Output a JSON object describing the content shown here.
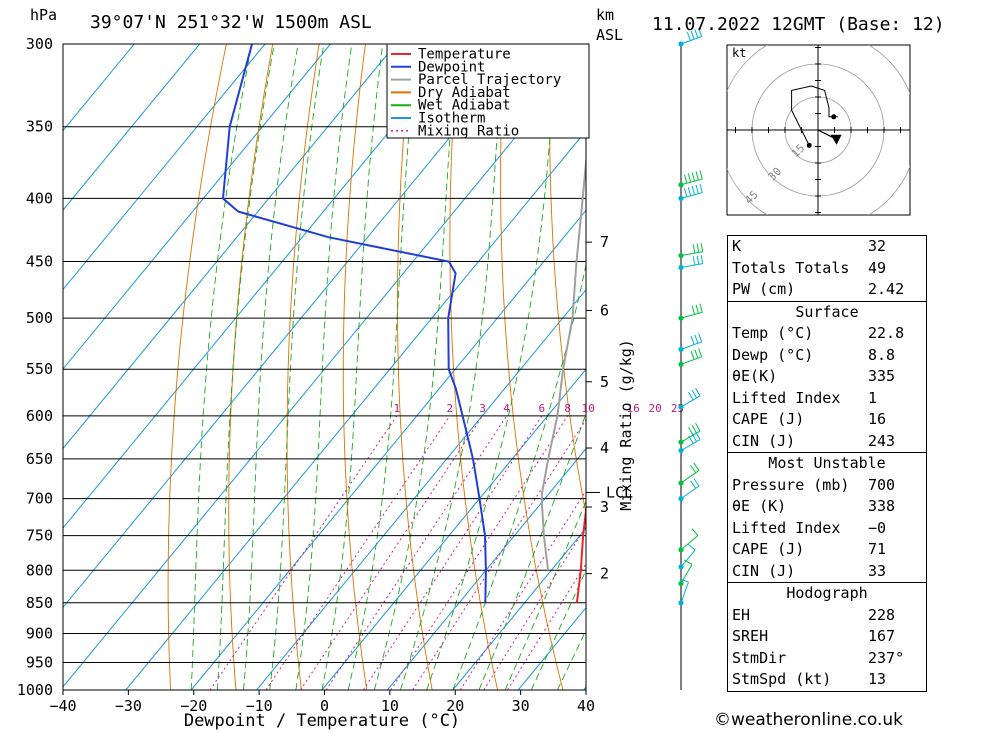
{
  "header": {
    "hpa_label": "hPa",
    "location": "39°07'N  251°32'W  1500m  ASL",
    "km_label": "km",
    "asl_label": "ASL",
    "datetime": "11.07.2022  12GMT  (Base: 12)"
  },
  "legend": [
    {
      "label": "Temperature",
      "color": "#e8262c",
      "style": "solid"
    },
    {
      "label": "Dewpoint",
      "color": "#1f3fd6",
      "style": "solid"
    },
    {
      "label": "Parcel Trajectory",
      "color": "#a0a0a0",
      "style": "solid"
    },
    {
      "label": "Dry Adiabat",
      "color": "#e07000",
      "style": "solid"
    },
    {
      "label": "Wet Adiabat",
      "color": "#1aaa1a",
      "style": "solid"
    },
    {
      "label": "Isotherm",
      "color": "#1e96dc",
      "style": "solid"
    },
    {
      "label": "Mixing Ratio",
      "color": "#d0209a",
      "style": "dotted"
    }
  ],
  "chart_data": {
    "type": "line",
    "chart_kind": "skew-T log-P",
    "xlabel": "Dewpoint / Temperature (°C)",
    "ylabel": "hPa",
    "xlim": [
      -40,
      40
    ],
    "ylim": [
      1000,
      300
    ],
    "y_scale": "log",
    "x_ticks": [
      -40,
      -30,
      -20,
      -10,
      0,
      10,
      20,
      30,
      40
    ],
    "pressure_levels": [
      300,
      350,
      400,
      450,
      500,
      550,
      600,
      650,
      700,
      750,
      800,
      850,
      900,
      950,
      1000
    ],
    "height_km_ticks": [
      {
        "label": "7",
        "pressure": 434
      },
      {
        "label": "6",
        "pressure": 493
      },
      {
        "label": "5",
        "pressure": 563
      },
      {
        "label": "4",
        "pressure": 637
      },
      {
        "label": "3",
        "pressure": 711
      },
      {
        "label": "2",
        "pressure": 805
      }
    ],
    "lcl": {
      "label": "LCL",
      "pressure": 692
    },
    "mixing_ratio_label": "Mixing Ratio (g/kg)",
    "mixing_ratio_values": [
      "1",
      "2",
      "3",
      "4",
      "6",
      "8",
      "10",
      "16",
      "20",
      "25"
    ],
    "series": [
      {
        "name": "Temperature",
        "color": "#e8262c",
        "points": [
          [
            850,
            28.0
          ],
          [
            800,
            24.5
          ],
          [
            750,
            20.5
          ],
          [
            700,
            16.5
          ],
          [
            650,
            12.0
          ],
          [
            600,
            7.0
          ],
          [
            550,
            1.5
          ],
          [
            500,
            -5.0
          ],
          [
            460,
            -10.5
          ],
          [
            450,
            -11.0
          ],
          [
            440,
            -11.5
          ],
          [
            420,
            -16.0
          ],
          [
            400,
            -20.0
          ],
          [
            370,
            -25.5
          ],
          [
            350,
            -29.0
          ],
          [
            320,
            -34.5
          ],
          [
            300,
            -38.5
          ]
        ]
      },
      {
        "name": "Dewpoint",
        "color": "#1f3fd6",
        "points": [
          [
            850,
            14.0
          ],
          [
            800,
            10.0
          ],
          [
            750,
            5.5
          ],
          [
            700,
            0.0
          ],
          [
            650,
            -6.0
          ],
          [
            600,
            -13.0
          ],
          [
            570,
            -17.5
          ],
          [
            550,
            -21.0
          ],
          [
            500,
            -27.5
          ],
          [
            460,
            -32.0
          ],
          [
            450,
            -34.5
          ],
          [
            430,
            -56.0
          ],
          [
            410,
            -73.0
          ],
          [
            400,
            -77.0
          ],
          [
            350,
            -85.0
          ],
          [
            300,
            -92.0
          ]
        ]
      },
      {
        "name": "Parcel Trajectory",
        "color": "#a0a0a0",
        "points": [
          [
            800,
            19.5
          ],
          [
            750,
            14.5
          ],
          [
            700,
            9.5
          ],
          [
            692,
            8.8
          ],
          [
            650,
            5.5
          ],
          [
            600,
            1.5
          ],
          [
            550,
            -3.5
          ],
          [
            500,
            -8.5
          ],
          [
            450,
            -15.0
          ],
          [
            400,
            -22.0
          ],
          [
            350,
            -30.0
          ],
          [
            300,
            -39.5
          ]
        ]
      }
    ]
  },
  "hodograph": {
    "unit_label": "kt",
    "ring_labels": [
      "15",
      "30",
      "45"
    ],
    "trace_kt": [
      [
        -4,
        -7
      ],
      [
        -12,
        9
      ],
      [
        -12,
        18
      ],
      [
        -3,
        20
      ],
      [
        3,
        18
      ],
      [
        5,
        10
      ],
      [
        5,
        6
      ],
      [
        9,
        6
      ]
    ],
    "storm_motion_kt": [
      [
        8,
        -4
      ],
      [
        0,
        0
      ]
    ]
  },
  "indices": [
    {
      "label": "K",
      "value": "32"
    },
    {
      "label": "Totals Totals",
      "value": "49"
    },
    {
      "label": "PW (cm)",
      "value": "2.42"
    }
  ],
  "surface": {
    "title": "Surface",
    "rows": [
      {
        "label": "Temp (°C)",
        "value": "22.8"
      },
      {
        "label": "Dewp (°C)",
        "value": "8.8"
      },
      {
        "label": "θE(K)",
        "value": "335"
      },
      {
        "label": "Lifted Index",
        "value": "1"
      },
      {
        "label": "CAPE (J)",
        "value": "16"
      },
      {
        "label": "CIN (J)",
        "value": "243"
      }
    ]
  },
  "most_unstable": {
    "title": "Most Unstable",
    "rows": [
      {
        "label": "Pressure (mb)",
        "value": "700"
      },
      {
        "label": "θE (K)",
        "value": "338"
      },
      {
        "label": "Lifted Index",
        "value": "−0"
      },
      {
        "label": "CAPE (J)",
        "value": "71"
      },
      {
        "label": "CIN (J)",
        "value": "33"
      }
    ]
  },
  "hodo_stats": {
    "title": "Hodograph",
    "rows": [
      {
        "label": "EH",
        "value": "228"
      },
      {
        "label": "SREH",
        "value": "167"
      },
      {
        "label": "StmDir",
        "value": "237°"
      },
      {
        "label": "StmSpd (kt)",
        "value": "13"
      }
    ]
  },
  "wind_profile": {
    "levels": [
      {
        "p": 300,
        "dir": 250,
        "spd": 40
      },
      {
        "p": 390,
        "dir": 255,
        "spd": 45
      },
      {
        "p": 400,
        "dir": 255,
        "spd": 45
      },
      {
        "p": 445,
        "dir": 260,
        "spd": 30
      },
      {
        "p": 455,
        "dir": 260,
        "spd": 30
      },
      {
        "p": 500,
        "dir": 255,
        "spd": 30
      },
      {
        "p": 530,
        "dir": 250,
        "spd": 30
      },
      {
        "p": 545,
        "dir": 250,
        "spd": 30
      },
      {
        "p": 590,
        "dir": 240,
        "spd": 25
      },
      {
        "p": 630,
        "dir": 240,
        "spd": 25
      },
      {
        "p": 640,
        "dir": 240,
        "spd": 25
      },
      {
        "p": 680,
        "dir": 235,
        "spd": 20
      },
      {
        "p": 700,
        "dir": 235,
        "spd": 20
      },
      {
        "p": 770,
        "dir": 230,
        "spd": 10
      },
      {
        "p": 795,
        "dir": 220,
        "spd": 10
      },
      {
        "p": 820,
        "dir": 210,
        "spd": 10
      },
      {
        "p": 850,
        "dir": 200,
        "spd": 10
      }
    ]
  },
  "credit": "©weatheronline.co.uk"
}
